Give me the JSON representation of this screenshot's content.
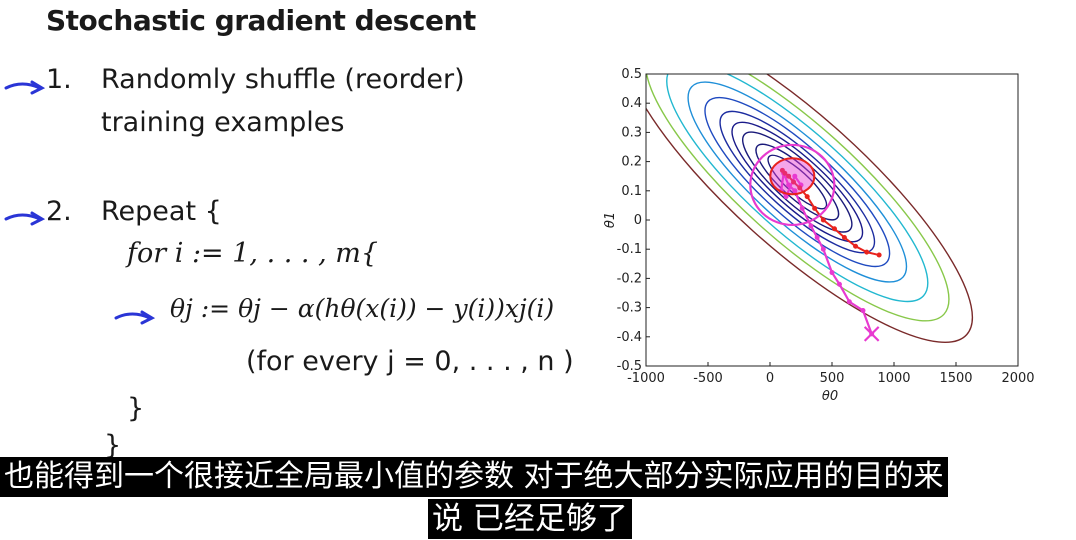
{
  "slide": {
    "title": "Stochastic gradient descent",
    "step1_num": "1.",
    "step1_line1": "Randomly shuffle (reorder)",
    "step1_line2": "training examples",
    "step2_num": "2.",
    "step2_text": "Repeat {",
    "for_line": "for i := 1, . . . , m{",
    "update_rule": "θj := θj − α(hθ(x(i)) − y(i))xj(i)",
    "for_every": "(for every j = 0, . . . , n )",
    "close_inner": "}",
    "close_outer": "}"
  },
  "subtitles": {
    "line1": "也能得到一个很接近全局最小值的参数 对于绝大部分实际应用的目的来",
    "line2": "说 已经足够了"
  },
  "colors": {
    "annotation_blue": "#2a35d6",
    "sgd_path": "#e83ad0",
    "batch_path": "#e8231e"
  },
  "chart_data": {
    "type": "line",
    "title": "",
    "xlabel": "θ0",
    "ylabel": "θ1",
    "xlim": [
      -1000,
      2000
    ],
    "ylim": [
      -0.5,
      0.5
    ],
    "x_ticks": [
      "-1000",
      "-500",
      "0",
      "500",
      "1000",
      "1500",
      "2000"
    ],
    "y_ticks": [
      "0.5",
      "0.4",
      "0.3",
      "0.2",
      "0.1",
      "0",
      "-0.1",
      "-0.2",
      "-0.3",
      "-0.4",
      "-0.5"
    ],
    "contour_center": [
      220,
      0.13
    ],
    "contour_levels": [
      1,
      2,
      3.5,
      5,
      7,
      10,
      14,
      20,
      27,
      36
    ],
    "contour_colors": [
      "#1a1a7a",
      "#1a1a7a",
      "#1a1a7a",
      "#1a1a8a",
      "#1c2ca0",
      "#1f4ac0",
      "#1f8fd8",
      "#22b8d0",
      "#88c84a",
      "#7a2a2a"
    ],
    "series": [
      {
        "x": [
          820,
          750,
          640,
          560,
          500,
          430,
          380,
          330,
          260,
          200,
          150,
          110,
          90,
          130,
          200,
          250
        ],
        "y": [
          -0.39,
          -0.31,
          -0.28,
          -0.22,
          -0.18,
          -0.1,
          -0.06,
          -0.02,
          0.04,
          0.1,
          0.12,
          0.16,
          0.1,
          0.08,
          0.15,
          0.12
        ]
      },
      {
        "x": [
          880,
          780,
          690,
          600,
          520,
          430,
          360,
          300,
          240,
          190,
          150,
          120,
          100
        ],
        "y": [
          -0.12,
          -0.11,
          -0.09,
          -0.06,
          -0.03,
          0.0,
          0.04,
          0.08,
          0.11,
          0.13,
          0.15,
          0.16,
          0.17
        ]
      }
    ]
  }
}
